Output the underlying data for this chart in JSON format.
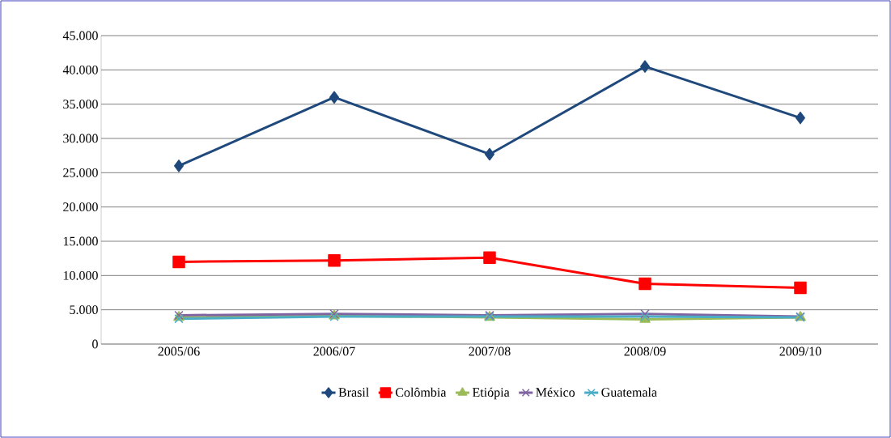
{
  "chart_data": {
    "type": "line",
    "categories": [
      "2005/06",
      "2006/07",
      "2007/08",
      "2008/09",
      "2009/10"
    ],
    "series": [
      {
        "name": "Brasil",
        "color": "#1f497d",
        "marker": "diamond",
        "values": [
          26000,
          36000,
          27700,
          40500,
          33000
        ]
      },
      {
        "name": "Colômbia",
        "color": "#ff0000",
        "marker": "square",
        "values": [
          12000,
          12200,
          12600,
          8800,
          8200
        ]
      },
      {
        "name": "Etiópia",
        "color": "#9bbb59",
        "marker": "triangle",
        "values": [
          3900,
          4100,
          3900,
          3600,
          3900
        ]
      },
      {
        "name": "México",
        "color": "#8064a2",
        "marker": "cross",
        "values": [
          4200,
          4400,
          4200,
          4400,
          4000
        ]
      },
      {
        "name": "Guatemala",
        "color": "#4bacc6",
        "marker": "cross",
        "values": [
          3700,
          4000,
          4000,
          4000,
          3900
        ]
      }
    ],
    "ylim": [
      0,
      45000
    ],
    "yticks": [
      {
        "value": 0,
        "label": "0"
      },
      {
        "value": 5000,
        "label": "5.000"
      },
      {
        "value": 10000,
        "label": "10.000"
      },
      {
        "value": 15000,
        "label": "15.000"
      },
      {
        "value": 20000,
        "label": "20.000"
      },
      {
        "value": 25000,
        "label": "25.000"
      },
      {
        "value": 30000,
        "label": "30.000"
      },
      {
        "value": 35000,
        "label": "35.000"
      },
      {
        "value": 40000,
        "label": "40.000"
      },
      {
        "value": 45000,
        "label": "45.000"
      }
    ],
    "grid": "y",
    "legend": "bottom",
    "line_style": "solid"
  }
}
